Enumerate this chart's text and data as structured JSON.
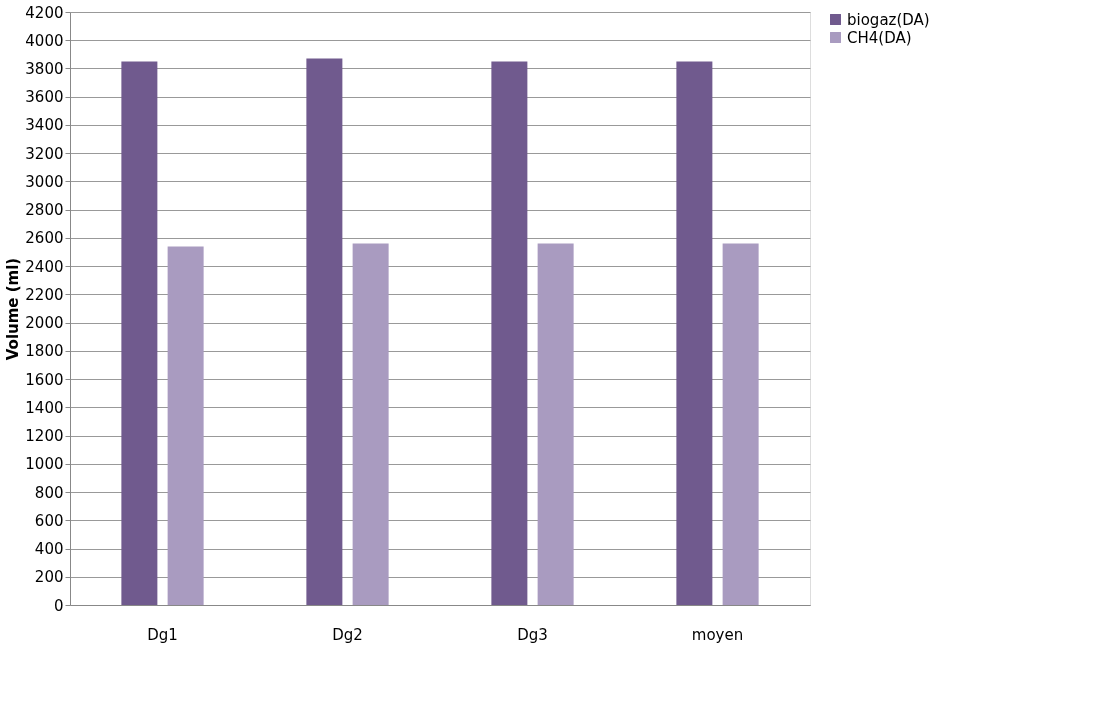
{
  "chart_data": {
    "type": "bar",
    "ylabel": "Volume (ml)",
    "categories": [
      "Dg1",
      "Dg2",
      "Dg3",
      "moyen"
    ],
    "series": [
      {
        "name": "biogaz(DA)",
        "color": "#705a8e",
        "values": [
          3850,
          3870,
          3850,
          3850
        ]
      },
      {
        "name": "CH4(DA)",
        "color": "#a99bc0",
        "values": [
          2540,
          2560,
          2560,
          2560
        ]
      }
    ],
    "ylim": [
      0,
      4200
    ],
    "yticks": [
      0,
      200,
      400,
      600,
      800,
      1000,
      1200,
      1400,
      1600,
      1800,
      2000,
      2200,
      2400,
      2600,
      2800,
      3000,
      3200,
      3400,
      3600,
      3800,
      4000,
      4200
    ],
    "grid": "y",
    "legend": "right"
  }
}
